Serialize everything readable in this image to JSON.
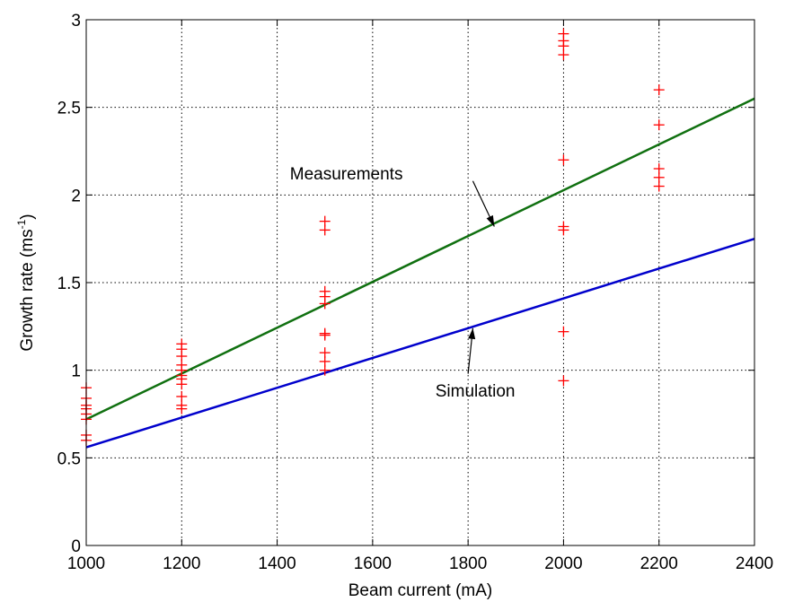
{
  "chart_data": {
    "type": "scatter",
    "xlabel": "Beam current (mA)",
    "ylabel": {
      "base": "Growth rate (ms",
      "sup": "-1",
      "tail": ")"
    },
    "xlim": [
      1000,
      2400
    ],
    "ylim": [
      0,
      3
    ],
    "xticks": [
      1000,
      1200,
      1400,
      1600,
      1800,
      2000,
      2200,
      2400
    ],
    "yticks": [
      0,
      0.5,
      1,
      1.5,
      2,
      2.5,
      3
    ],
    "ytick_labels": [
      "0",
      "0.5",
      "1",
      "1.5",
      "2",
      "2.5",
      "3"
    ],
    "grid": true,
    "colors": {
      "points": "#ff0000",
      "measurements": "#107010",
      "simulation": "#0000cc"
    },
    "points": [
      {
        "x": 1000,
        "y": 0.6
      },
      {
        "x": 1000,
        "y": 0.63
      },
      {
        "x": 1000,
        "y": 0.72
      },
      {
        "x": 1000,
        "y": 0.75
      },
      {
        "x": 1000,
        "y": 0.78
      },
      {
        "x": 1000,
        "y": 0.8
      },
      {
        "x": 1000,
        "y": 0.84
      },
      {
        "x": 1000,
        "y": 0.9
      },
      {
        "x": 1200,
        "y": 0.78
      },
      {
        "x": 1200,
        "y": 0.8
      },
      {
        "x": 1200,
        "y": 0.85
      },
      {
        "x": 1200,
        "y": 0.92
      },
      {
        "x": 1200,
        "y": 0.95
      },
      {
        "x": 1200,
        "y": 0.97
      },
      {
        "x": 1200,
        "y": 1.0
      },
      {
        "x": 1200,
        "y": 1.03
      },
      {
        "x": 1200,
        "y": 1.08
      },
      {
        "x": 1200,
        "y": 1.12
      },
      {
        "x": 1200,
        "y": 1.15
      },
      {
        "x": 1500,
        "y": 1.0
      },
      {
        "x": 1500,
        "y": 1.05
      },
      {
        "x": 1500,
        "y": 1.1
      },
      {
        "x": 1500,
        "y": 1.2
      },
      {
        "x": 1500,
        "y": 1.21
      },
      {
        "x": 1500,
        "y": 1.38
      },
      {
        "x": 1500,
        "y": 1.42
      },
      {
        "x": 1500,
        "y": 1.45
      },
      {
        "x": 1500,
        "y": 1.8
      },
      {
        "x": 1500,
        "y": 1.85
      },
      {
        "x": 2000,
        "y": 0.94
      },
      {
        "x": 2000,
        "y": 1.22
      },
      {
        "x": 2000,
        "y": 1.8
      },
      {
        "x": 2000,
        "y": 1.82
      },
      {
        "x": 2000,
        "y": 2.2
      },
      {
        "x": 2000,
        "y": 2.8
      },
      {
        "x": 2000,
        "y": 2.85
      },
      {
        "x": 2000,
        "y": 2.88
      },
      {
        "x": 2000,
        "y": 2.92
      },
      {
        "x": 2200,
        "y": 2.05
      },
      {
        "x": 2200,
        "y": 2.1
      },
      {
        "x": 2200,
        "y": 2.15
      },
      {
        "x": 2200,
        "y": 2.4
      },
      {
        "x": 2200,
        "y": 2.6
      }
    ],
    "lines": [
      {
        "name": "Measurements",
        "x": [
          1000,
          2400
        ],
        "y": [
          0.72,
          2.55
        ]
      },
      {
        "name": "Simulation",
        "x": [
          1000,
          2400
        ],
        "y": [
          0.56,
          1.75
        ]
      }
    ],
    "annotations": [
      {
        "text": "Measurements",
        "text_at": [
          1545,
          2.09
        ],
        "arrow_from": [
          1810,
          2.08
        ],
        "arrow_to": [
          1855,
          1.82
        ]
      },
      {
        "text": "Simulation",
        "text_at": [
          1815,
          0.85
        ],
        "arrow_from": [
          1800,
          0.98
        ],
        "arrow_to": [
          1810,
          1.24
        ]
      }
    ]
  }
}
